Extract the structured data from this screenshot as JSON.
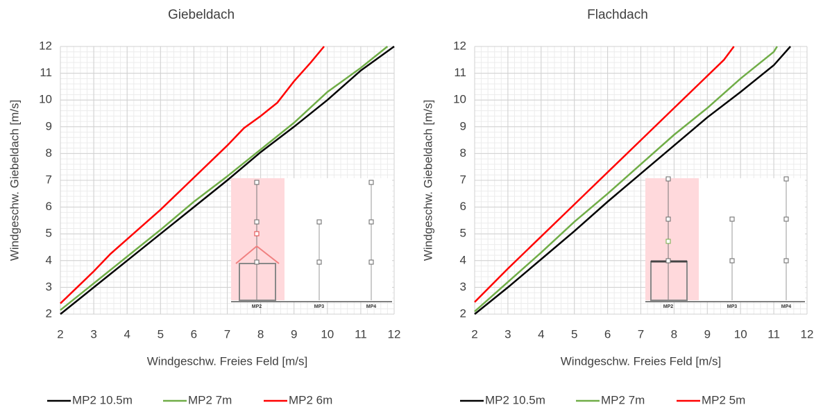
{
  "chart_data": [
    {
      "type": "line",
      "title": "Giebeldach",
      "x_label": "Windgeschw. Freies Feld [m/s]",
      "y_label": "Windgeschw. Giebeldach [m/s]",
      "xlim": [
        2,
        12
      ],
      "ylim": [
        2,
        12
      ],
      "xticks": [
        2,
        3,
        4,
        5,
        6,
        7,
        8,
        9,
        10,
        11,
        12
      ],
      "yticks": [
        2,
        3,
        4,
        5,
        6,
        7,
        8,
        9,
        10,
        11,
        12
      ],
      "grid": true,
      "series": [
        {
          "name": "MP2 10.5m",
          "color": "#000000",
          "x": [
            2,
            3,
            4,
            5,
            6,
            7,
            8,
            9,
            10,
            11,
            12
          ],
          "values": [
            2,
            3,
            4,
            5,
            6,
            7,
            8.05,
            9,
            10,
            11.1,
            12
          ]
        },
        {
          "name": "MP2 7m",
          "color": "#70ad47",
          "x": [
            2,
            3,
            4,
            5,
            6,
            7,
            8,
            9,
            10,
            11,
            11.8
          ],
          "values": [
            2.15,
            3.15,
            4.15,
            5.15,
            6.2,
            7.15,
            8.15,
            9.15,
            10.3,
            11.2,
            12
          ]
        },
        {
          "name": "MP2 6m",
          "color": "#ff0000",
          "x": [
            2,
            3,
            3.5,
            4,
            5,
            6,
            7,
            7.5,
            8,
            8.5,
            9,
            9.5,
            9.9
          ],
          "values": [
            2.4,
            3.6,
            4.25,
            4.8,
            5.9,
            7.1,
            8.3,
            8.95,
            9.4,
            9.9,
            10.7,
            11.4,
            12
          ]
        }
      ],
      "inset_labels": [
        "MP2",
        "MP3",
        "MP4"
      ]
    },
    {
      "type": "line",
      "title": "Flachdach",
      "x_label": "Windgeschw. Freies Feld [m/s]",
      "y_label": "Windgeschw. Giebeldach [m/s]",
      "xlim": [
        2,
        12
      ],
      "ylim": [
        2,
        12
      ],
      "xticks": [
        2,
        3,
        4,
        5,
        6,
        7,
        8,
        9,
        10,
        11,
        12
      ],
      "yticks": [
        2,
        3,
        4,
        5,
        6,
        7,
        8,
        9,
        10,
        11,
        12
      ],
      "grid": true,
      "series": [
        {
          "name": "MP2 10.5m",
          "color": "#000000",
          "x": [
            2,
            3,
            4,
            5,
            6,
            7,
            8,
            9,
            10,
            11,
            11.5
          ],
          "values": [
            2,
            3,
            4.05,
            5.1,
            6.2,
            7.25,
            8.3,
            9.35,
            10.3,
            11.3,
            12
          ]
        },
        {
          "name": "MP2 7m",
          "color": "#70ad47",
          "x": [
            2,
            3,
            4,
            5,
            6,
            7,
            8,
            9,
            10,
            11,
            11.1
          ],
          "values": [
            2.1,
            3.2,
            4.3,
            5.45,
            6.5,
            7.6,
            8.7,
            9.7,
            10.8,
            11.8,
            12
          ]
        },
        {
          "name": "MP2 5m",
          "color": "#ff0000",
          "x": [
            2,
            3,
            4,
            5,
            6,
            7,
            8,
            9,
            9.5,
            9.8
          ],
          "values": [
            2.45,
            3.7,
            4.9,
            6.1,
            7.3,
            8.5,
            9.7,
            10.9,
            11.5,
            12
          ]
        }
      ],
      "inset_labels": [
        "MP2",
        "MP3",
        "MP4"
      ]
    }
  ]
}
